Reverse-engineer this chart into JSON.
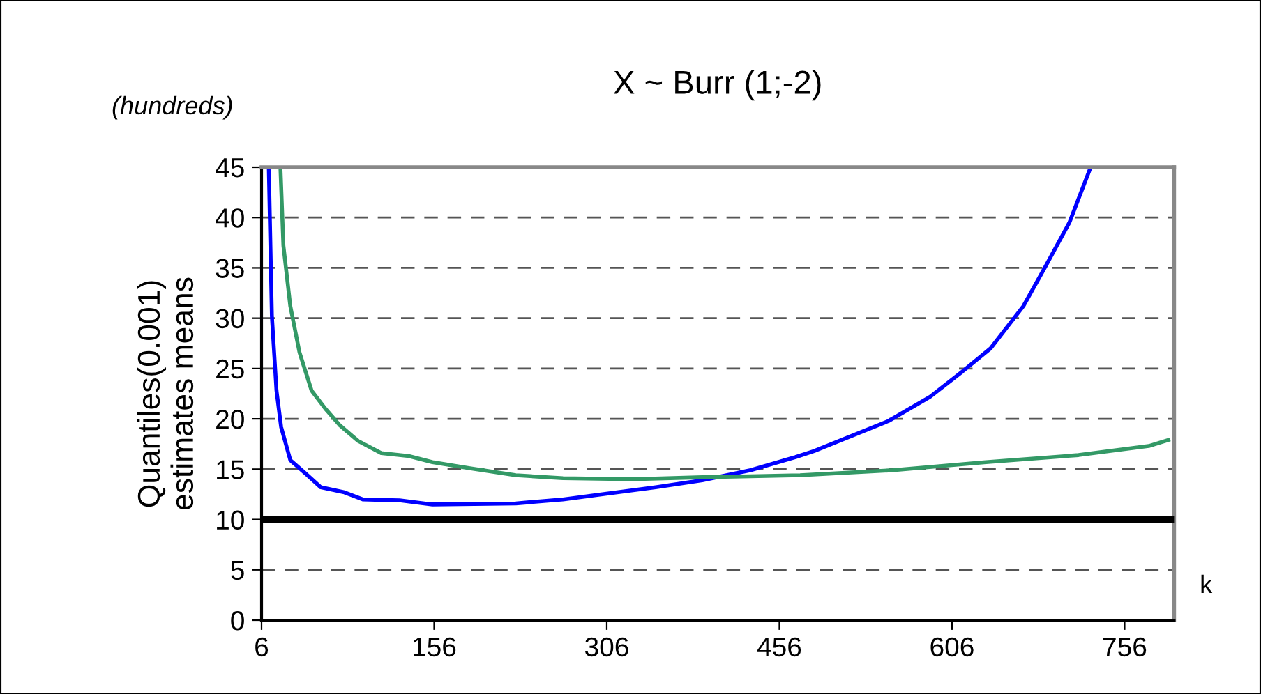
{
  "chart_data": {
    "type": "line",
    "title": "X ~ Burr (1;-2)",
    "xlabel": "k",
    "ylabel": "Quantiles(0.001)\nestimates means",
    "annotations": [
      "(hundreds)"
    ],
    "xlim": [
      6,
      799
    ],
    "xticks": [
      6,
      156,
      306,
      456,
      606,
      756
    ],
    "ylim": [
      0,
      45
    ],
    "yticks": [
      0,
      5,
      10,
      15,
      20,
      25,
      30,
      35,
      40,
      45
    ],
    "grid": "y",
    "legend": false,
    "marker": "none",
    "line_style": "solid",
    "series": [
      {
        "color": "#0000ff",
        "x": [
          12.3,
          15,
          19,
          23,
          31,
          45,
          57.5,
          78,
          94,
          126,
          154.5,
          227,
          268,
          308,
          348.5,
          389,
          431,
          470,
          486,
          551,
          587,
          615,
          639.5,
          668,
          688,
          708,
          726.5
        ],
        "values": [
          45,
          30.2,
          22.8,
          19.2,
          15.9,
          14.5,
          13.2,
          12.7,
          12.0,
          11.9,
          11.5,
          11.6,
          12.0,
          12.6,
          13.2,
          13.9,
          14.9,
          16.2,
          16.8,
          19.8,
          22.2,
          24.7,
          27.0,
          31.2,
          35.3,
          39.5,
          45
        ]
      },
      {
        "color": "#339966",
        "x": [
          22.4,
          25,
          31,
          39,
          49.5,
          61.5,
          73.7,
          90,
          110,
          134,
          154.5,
          187,
          227,
          268,
          328,
          389,
          474,
          555,
          635.5,
          716,
          777,
          794
        ],
        "values": [
          45,
          37.2,
          31.2,
          26.6,
          22.8,
          21.0,
          19.4,
          17.8,
          16.6,
          16.3,
          15.7,
          15.1,
          14.4,
          14.1,
          14.0,
          14.2,
          14.4,
          14.9,
          15.7,
          16.4,
          17.3,
          17.9
        ]
      }
    ],
    "ref_lines": [
      {
        "axis": "y",
        "value": 10,
        "color": "#000000",
        "line_style": "solid"
      }
    ]
  }
}
